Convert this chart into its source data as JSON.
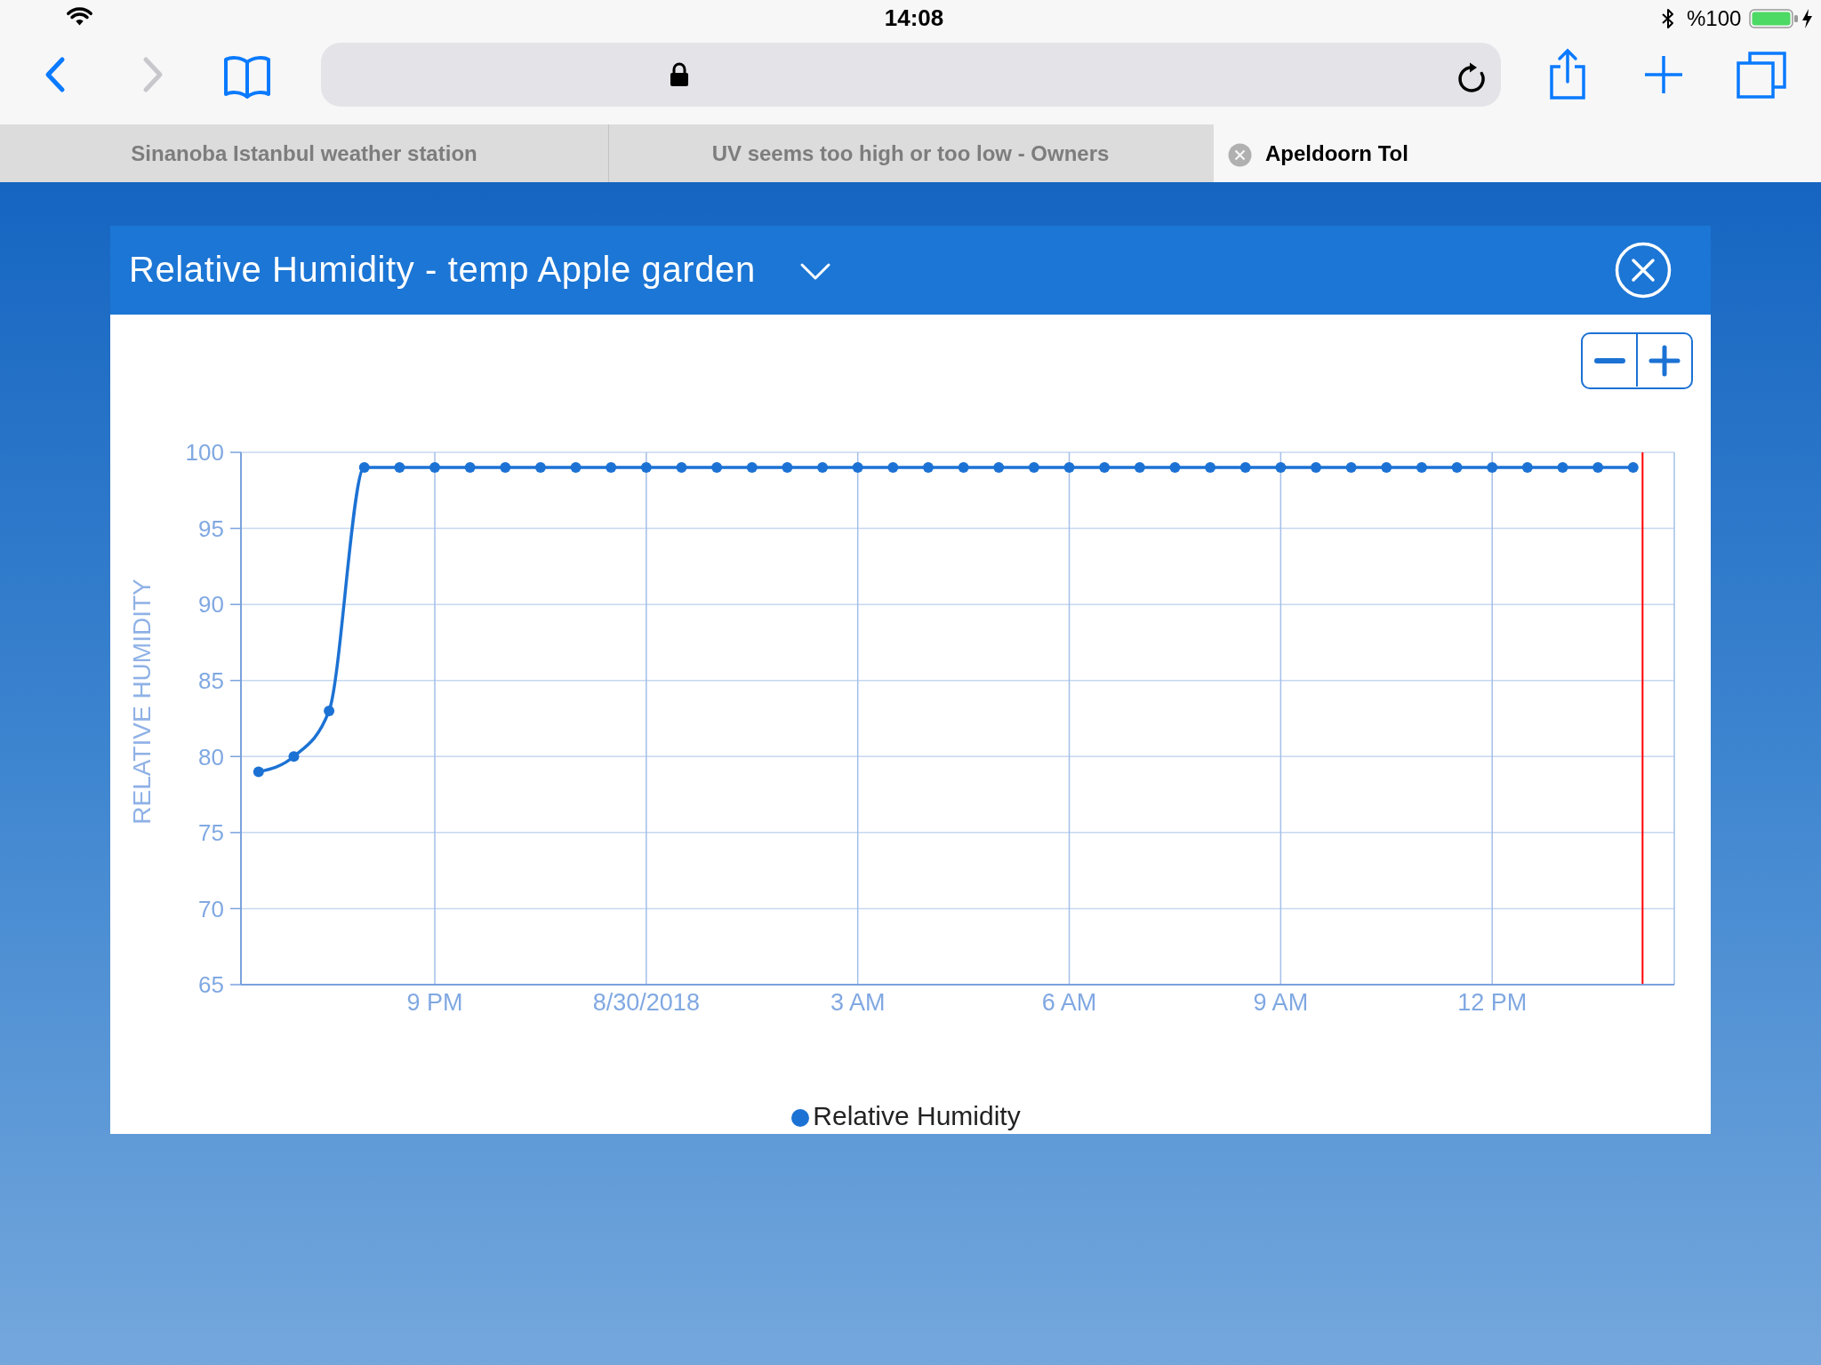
{
  "chart_data": {
    "type": "line",
    "title": "Relative Humidity - temp Apple garden",
    "ylabel": "RELATIVE HUMIDITY",
    "annotations": [
      "14:08",
      "%100",
      "Sinanoba Istanbul weather station",
      "UV seems too high or too low - Owners",
      "Apeldoorn Tol"
    ],
    "x": [
      "2018-08-29T18:30",
      "2018-08-29T19:00",
      "2018-08-29T19:30",
      "2018-08-29T20:00",
      "2018-08-29T20:30",
      "2018-08-29T21:00",
      "2018-08-29T21:30",
      "2018-08-29T22:00",
      "2018-08-29T22:30",
      "2018-08-29T23:00",
      "2018-08-29T23:30",
      "2018-08-30T00:00",
      "2018-08-30T00:30",
      "2018-08-30T01:00",
      "2018-08-30T01:30",
      "2018-08-30T02:00",
      "2018-08-30T02:30",
      "2018-08-30T03:00",
      "2018-08-30T03:30",
      "2018-08-30T04:00",
      "2018-08-30T04:30",
      "2018-08-30T05:00",
      "2018-08-30T05:30",
      "2018-08-30T06:00",
      "2018-08-30T06:30",
      "2018-08-30T07:00",
      "2018-08-30T07:30",
      "2018-08-30T08:00",
      "2018-08-30T08:30",
      "2018-08-30T09:00",
      "2018-08-30T09:30",
      "2018-08-30T10:00",
      "2018-08-30T10:30",
      "2018-08-30T11:00",
      "2018-08-30T11:30",
      "2018-08-30T12:00",
      "2018-08-30T12:30",
      "2018-08-30T13:00",
      "2018-08-30T13:30",
      "2018-08-30T14:00"
    ],
    "series": [
      {
        "name": "Relative Humidity",
        "color": "#1c72d4",
        "values": [
          79,
          80,
          83,
          99,
          99,
          99,
          99,
          99,
          99,
          99,
          99,
          99,
          99,
          99,
          99,
          99,
          99,
          99,
          99,
          99,
          99,
          99,
          99,
          99,
          99,
          99,
          99,
          99,
          99,
          99,
          99,
          99,
          99,
          99,
          99,
          99,
          99,
          99,
          99,
          99
        ]
      }
    ],
    "xlim": [
      "2018-08-29T18:15",
      "2018-08-30T14:35"
    ],
    "xticks": [
      {
        "value": "2018-08-29T21:00",
        "label": "9 PM"
      },
      {
        "value": "2018-08-30T00:00",
        "label": "8/30/2018"
      },
      {
        "value": "2018-08-30T03:00",
        "label": "3 AM"
      },
      {
        "value": "2018-08-30T06:00",
        "label": "6 AM"
      },
      {
        "value": "2018-08-30T09:00",
        "label": "9 AM"
      },
      {
        "value": "2018-08-30T12:00",
        "label": "12 PM"
      }
    ],
    "ylim": [
      65,
      100
    ],
    "yticks": [
      65,
      70,
      75,
      80,
      85,
      90,
      95,
      100
    ],
    "ref_lines": [
      {
        "axis": "x",
        "value": "2018-08-30T14:08",
        "color": "#ff0000"
      }
    ],
    "grid": true,
    "legend": "bottom",
    "marker": "circle",
    "line_style": "solid"
  }
}
